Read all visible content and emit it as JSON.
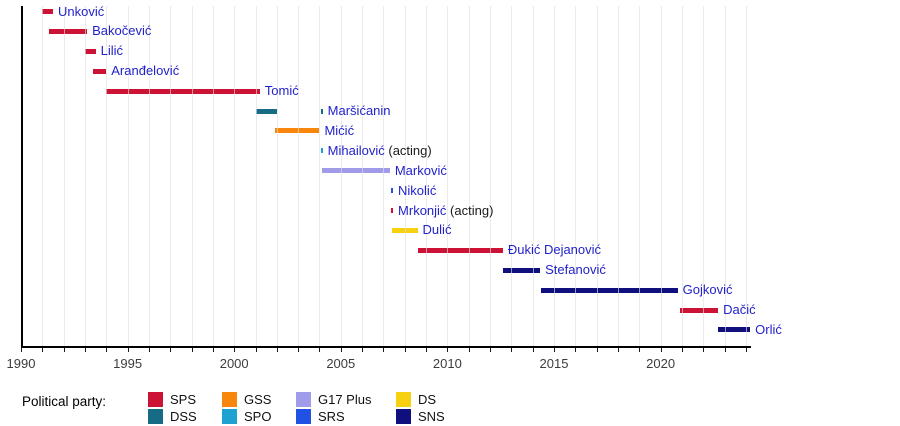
{
  "chart_data": {
    "type": "bar",
    "variant": "horizontal-timeline-gantt",
    "title": "",
    "xlabel": "",
    "ylabel": "",
    "grid": true,
    "x_axis": {
      "min": 1990,
      "max": 2024.2,
      "tick_interval_years": 1,
      "labeled_ticks": [
        1990,
        1995,
        2000,
        2005,
        2010,
        2015,
        2020
      ]
    },
    "parties": {
      "SPS": "#cc1235",
      "DSS": "#156c84",
      "GSS": "#f8860d",
      "SPO": "#1fa1d2",
      "G17 Plus": "#a19cea",
      "SRS": "#2152e3",
      "DS": "#f7d011",
      "SNS": "#0f0f7d"
    },
    "rows": [
      {
        "name": "Unković",
        "party": "SPS",
        "terms": [
          {
            "start": 1991.0,
            "end": 1991.5
          }
        ]
      },
      {
        "name": "Bakočević",
        "party": "SPS",
        "terms": [
          {
            "start": 1991.3,
            "end": 1993.1
          }
        ]
      },
      {
        "name": "Lilić",
        "party": "SPS",
        "terms": [
          {
            "start": 1993.0,
            "end": 1993.5
          }
        ]
      },
      {
        "name": "Aranđelović",
        "party": "SPS",
        "terms": [
          {
            "start": 1993.4,
            "end": 1994.0
          }
        ]
      },
      {
        "name": "Tomić",
        "party": "SPS",
        "terms": [
          {
            "start": 1994.0,
            "end": 2001.2
          }
        ]
      },
      {
        "name": "Maršićanin",
        "party": "DSS",
        "terms": [
          {
            "start": 2001.0,
            "end": 2002.0
          },
          {
            "start": 2004.05,
            "end": 2004.15
          }
        ]
      },
      {
        "name": "Mićić",
        "party": "GSS",
        "terms": [
          {
            "start": 2001.9,
            "end": 2004.0
          }
        ]
      },
      {
        "name": "Mihailović",
        "suffix": " (acting)",
        "party": "SPO",
        "terms": [
          {
            "start": 2004.05,
            "end": 2004.15
          }
        ]
      },
      {
        "name": "Marković",
        "party": "G17 Plus",
        "terms": [
          {
            "start": 2004.1,
            "end": 2007.3
          }
        ]
      },
      {
        "name": "Nikolić",
        "party": "SRS",
        "terms": [
          {
            "start": 2007.35,
            "end": 2007.45
          }
        ]
      },
      {
        "name": "Mrkonjić",
        "suffix": " (acting)",
        "party": "SPS",
        "terms": [
          {
            "start": 2007.35,
            "end": 2007.45
          }
        ]
      },
      {
        "name": "Dulić",
        "party": "DS",
        "terms": [
          {
            "start": 2007.4,
            "end": 2008.6
          }
        ]
      },
      {
        "name": "Đukić Dejanović",
        "party": "SPS",
        "terms": [
          {
            "start": 2008.6,
            "end": 2012.6
          }
        ]
      },
      {
        "name": "Stefanović",
        "party": "SNS",
        "terms": [
          {
            "start": 2012.6,
            "end": 2014.35
          }
        ]
      },
      {
        "name": "Gojković",
        "party": "SNS",
        "terms": [
          {
            "start": 2014.4,
            "end": 2020.8
          }
        ]
      },
      {
        "name": "Dačić",
        "party": "SPS",
        "terms": [
          {
            "start": 2020.9,
            "end": 2022.7
          }
        ]
      },
      {
        "name": "Orlić",
        "party": "SNS",
        "terms": [
          {
            "start": 2022.7,
            "end": 2024.2
          }
        ]
      }
    ]
  },
  "legend": {
    "title": "Political party:",
    "rows": [
      [
        "SPS",
        "GSS",
        "G17 Plus",
        "DS"
      ],
      [
        "DSS",
        "SPO",
        "SRS",
        "SNS"
      ]
    ]
  }
}
